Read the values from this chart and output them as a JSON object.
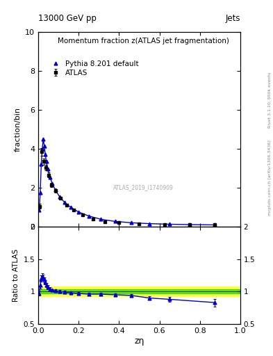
{
  "title_left": "13000 GeV pp",
  "title_right": "Jets",
  "right_label_top": "Rivet 3.1.10, 500k events",
  "right_label_bottom": "mcplots.cern.ch [arXiv:1306.3436]",
  "watermark": "ATLAS_2019_I1740909",
  "main_ylabel": "fraction/bin",
  "main_title": "Momentum fraction z(ATLAS jet fragmentation)",
  "ratio_ylabel": "Ratio to ATLAS",
  "xlabel": "zη",
  "main_ylim": [
    0,
    10
  ],
  "ratio_ylim": [
    0.5,
    2.0
  ],
  "xlim": [
    0,
    1
  ],
  "legend_atlas": "ATLAS",
  "legend_pythia": "Pythia 8.201 default",
  "atlas_x": [
    0.008,
    0.018,
    0.028,
    0.038,
    0.05,
    0.065,
    0.085,
    0.11,
    0.14,
    0.175,
    0.22,
    0.27,
    0.33,
    0.4,
    0.5,
    0.625,
    0.75,
    0.875
  ],
  "atlas_y": [
    1.05,
    3.85,
    3.35,
    3.05,
    2.65,
    2.15,
    1.85,
    1.45,
    1.1,
    0.85,
    0.6,
    0.4,
    0.26,
    0.2,
    0.15,
    0.12,
    0.1,
    0.09
  ],
  "atlas_yerr": [
    0.12,
    0.2,
    0.16,
    0.14,
    0.12,
    0.1,
    0.09,
    0.07,
    0.06,
    0.05,
    0.04,
    0.03,
    0.02,
    0.02,
    0.015,
    0.012,
    0.01,
    0.01
  ],
  "pythia_x": [
    0.005,
    0.01,
    0.015,
    0.02,
    0.025,
    0.03,
    0.035,
    0.04,
    0.048,
    0.058,
    0.07,
    0.085,
    0.105,
    0.13,
    0.16,
    0.2,
    0.25,
    0.31,
    0.38,
    0.46,
    0.55,
    0.65,
    0.75,
    0.875
  ],
  "pythia_y": [
    0.85,
    1.75,
    3.2,
    4.0,
    4.5,
    4.15,
    3.7,
    3.35,
    2.95,
    2.55,
    2.2,
    1.88,
    1.55,
    1.25,
    1.0,
    0.75,
    0.55,
    0.38,
    0.27,
    0.2,
    0.155,
    0.125,
    0.105,
    0.09
  ],
  "ratio_x": [
    0.005,
    0.01,
    0.015,
    0.02,
    0.025,
    0.03,
    0.035,
    0.04,
    0.048,
    0.058,
    0.07,
    0.085,
    0.105,
    0.13,
    0.16,
    0.2,
    0.25,
    0.31,
    0.38,
    0.46,
    0.55,
    0.65,
    0.875
  ],
  "ratio_y": [
    0.97,
    1.1,
    1.2,
    1.23,
    1.22,
    1.18,
    1.14,
    1.1,
    1.07,
    1.04,
    1.02,
    1.01,
    1.0,
    0.99,
    0.98,
    0.97,
    0.96,
    0.96,
    0.95,
    0.94,
    0.9,
    0.88,
    0.83
  ],
  "ratio_yerr": [
    0.03,
    0.05,
    0.05,
    0.05,
    0.04,
    0.04,
    0.03,
    0.03,
    0.03,
    0.03,
    0.02,
    0.02,
    0.02,
    0.02,
    0.02,
    0.02,
    0.02,
    0.02,
    0.02,
    0.02,
    0.03,
    0.04,
    0.06
  ],
  "green_band_lower": 0.97,
  "green_band_upper": 1.03,
  "yellow_band_lower": 0.93,
  "yellow_band_upper": 1.08,
  "line_color": "#0000cc",
  "marker_color_atlas": "#000000",
  "marker_color_pythia": "#0000cc",
  "atlas_marker": "s",
  "pythia_marker": "^",
  "fig_width": 3.93,
  "fig_height": 5.12,
  "dpi": 100
}
